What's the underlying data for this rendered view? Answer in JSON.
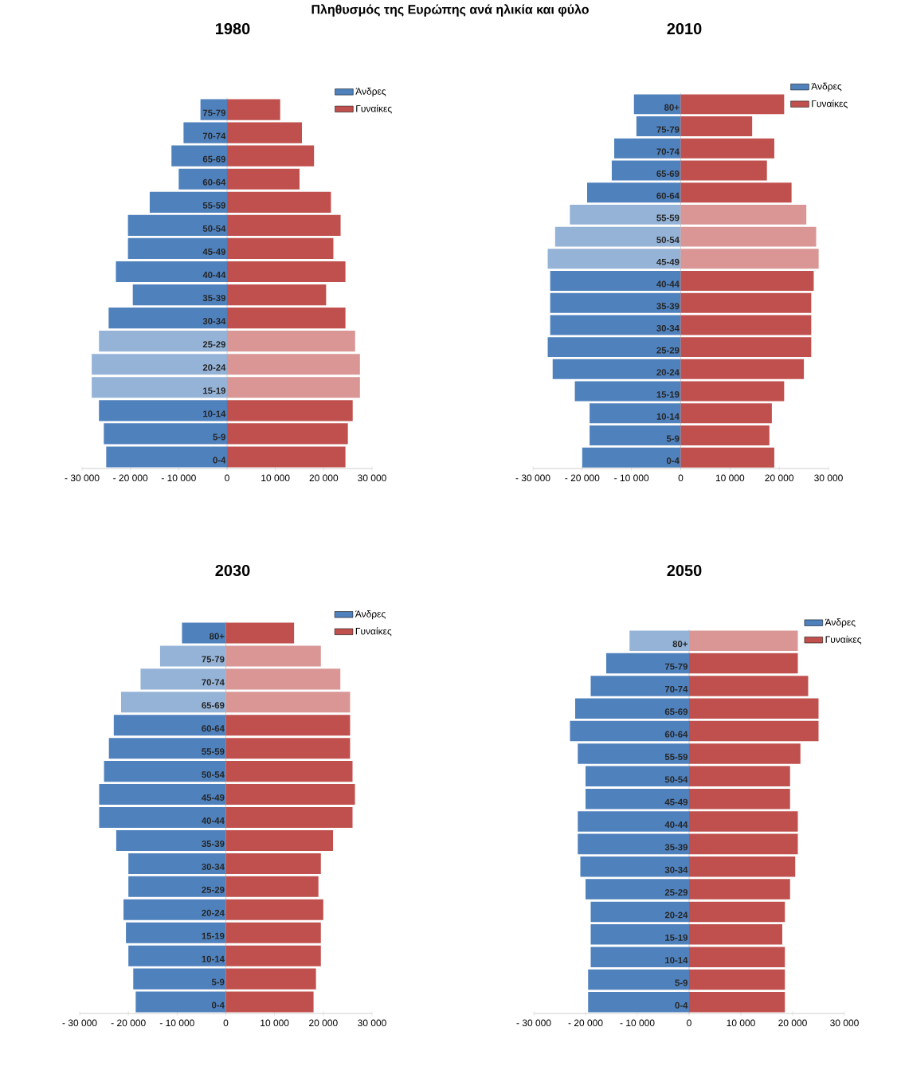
{
  "chart_data": [
    {
      "type": "other",
      "title": "Πληθυσμός της Ευρώπης ανά ηλικία και φύλο"
    },
    {
      "type": "bar",
      "title": "1980",
      "orientation": "horizontal",
      "stacked": true,
      "legend": "top right",
      "categories": [
        "75-79",
        "70-74",
        "65-69",
        "60-64",
        "55-59",
        "50-54",
        "45-49",
        "40-44",
        "35-39",
        "30-34",
        "25-29",
        "20-24",
        "15-19",
        "10-14",
        "5-9",
        "0-4"
      ],
      "series": [
        {
          "name": "Άνδρες",
          "color": "#4f81bd",
          "colors": [
            "#4f81bd",
            "#4f81bd",
            "#4f81bd",
            "#4f81bd",
            "#4f81bd",
            "#4f81bd",
            "#4f81bd",
            "#4f81bd",
            "#4f81bd",
            "#4f81bd",
            "#95b3d7",
            "#95b3d7",
            "#95b3d7",
            "#4f81bd",
            "#4f81bd",
            "#4f81bd"
          ],
          "values": [
            -5500,
            -9000,
            -11500,
            -10000,
            -16000,
            -20500,
            -20500,
            -23000,
            -19500,
            -24500,
            -26500,
            -28000,
            -28000,
            -26500,
            -25500,
            -25000
          ]
        },
        {
          "name": "Γυναίκες",
          "color": "#c0504d",
          "colors": [
            "#c0504d",
            "#c0504d",
            "#c0504d",
            "#c0504d",
            "#c0504d",
            "#c0504d",
            "#c0504d",
            "#c0504d",
            "#c0504d",
            "#c0504d",
            "#d99694",
            "#d99694",
            "#d99694",
            "#c0504d",
            "#c0504d",
            "#c0504d"
          ],
          "values": [
            11000,
            15500,
            18000,
            15000,
            21500,
            23500,
            22000,
            24500,
            20500,
            24500,
            26500,
            27500,
            27500,
            26000,
            25000,
            24500
          ]
        }
      ],
      "xlim": [
        -30000,
        30000
      ],
      "xticks": [
        {
          "value": -30000,
          "label": "- 30 000"
        },
        {
          "value": -20000,
          "label": "- 20 000"
        },
        {
          "value": -10000,
          "label": "- 10 000"
        },
        0,
        {
          "value": 10000,
          "label": "10 000"
        },
        {
          "value": 20000,
          "label": "20 000"
        },
        {
          "value": 30000,
          "label": "30 000"
        }
      ]
    },
    {
      "type": "bar",
      "title": "2010",
      "orientation": "horizontal",
      "stacked": true,
      "legend": "top right",
      "categories": [
        "80+",
        "75-79",
        "70-74",
        "65-69",
        "60-64",
        "55-59",
        "50-54",
        "45-49",
        "40-44",
        "35-39",
        "30-34",
        "25-29",
        "20-24",
        "15-19",
        "10-14",
        "5-9",
        "0-4"
      ],
      "series": [
        {
          "name": "Άνδρες",
          "color": "#4f81bd",
          "colors": [
            "#4f81bd",
            "#4f81bd",
            "#4f81bd",
            "#4f81bd",
            "#4f81bd",
            "#95b3d7",
            "#95b3d7",
            "#95b3d7",
            "#4f81bd",
            "#4f81bd",
            "#4f81bd",
            "#4f81bd",
            "#4f81bd",
            "#4f81bd",
            "#4f81bd",
            "#4f81bd",
            "#4f81bd"
          ],
          "values": [
            -9500,
            -9000,
            -13500,
            -14000,
            -19000,
            -22500,
            -25500,
            -27000,
            -26500,
            -26500,
            -26500,
            -27000,
            -26000,
            -21500,
            -18500,
            -18500,
            -20000
          ]
        },
        {
          "name": "Γυναίκες",
          "color": "#c0504d",
          "colors": [
            "#c0504d",
            "#c0504d",
            "#c0504d",
            "#c0504d",
            "#c0504d",
            "#d99694",
            "#d99694",
            "#d99694",
            "#c0504d",
            "#c0504d",
            "#c0504d",
            "#c0504d",
            "#c0504d",
            "#c0504d",
            "#c0504d",
            "#c0504d",
            "#c0504d"
          ],
          "values": [
            21000,
            14500,
            19000,
            17500,
            22500,
            25500,
            27500,
            28000,
            27000,
            26500,
            26500,
            26500,
            25000,
            21000,
            18500,
            18000,
            19000
          ]
        }
      ],
      "xlim": [
        -30000,
        30000
      ],
      "xticks": [
        {
          "value": -30000,
          "label": "- 30 000"
        },
        {
          "value": -20000,
          "label": "- 20 000"
        },
        {
          "value": -10000,
          "label": "- 10 000"
        },
        0,
        {
          "value": 10000,
          "label": "10 000"
        },
        {
          "value": 20000,
          "label": "20 000"
        },
        {
          "value": 30000,
          "label": "30 000"
        }
      ]
    },
    {
      "type": "bar",
      "title": "2030",
      "orientation": "horizontal",
      "stacked": true,
      "legend": "top right",
      "categories": [
        "80+",
        "75-79",
        "70-74",
        "65-69",
        "60-64",
        "55-59",
        "50-54",
        "45-49",
        "40-44",
        "35-39",
        "30-34",
        "25-29",
        "20-24",
        "15-19",
        "10-14",
        "5-9",
        "0-4"
      ],
      "series": [
        {
          "name": "Άνδρες",
          "color": "#4f81bd",
          "colors": [
            "#4f81bd",
            "#95b3d7",
            "#95b3d7",
            "#95b3d7",
            "#4f81bd",
            "#4f81bd",
            "#4f81bd",
            "#4f81bd",
            "#4f81bd",
            "#4f81bd",
            "#4f81bd",
            "#4f81bd",
            "#4f81bd",
            "#4f81bd",
            "#4f81bd",
            "#4f81bd",
            "#4f81bd"
          ],
          "values": [
            -9000,
            -13500,
            -17500,
            -21500,
            -23000,
            -24000,
            -25000,
            -26000,
            -26000,
            -22500,
            -20000,
            -20000,
            -21000,
            -20500,
            -20000,
            -19000,
            -18500
          ]
        },
        {
          "name": "Γυναίκες",
          "color": "#c0504d",
          "colors": [
            "#c0504d",
            "#d99694",
            "#d99694",
            "#d99694",
            "#c0504d",
            "#c0504d",
            "#c0504d",
            "#c0504d",
            "#c0504d",
            "#c0504d",
            "#c0504d",
            "#c0504d",
            "#c0504d",
            "#c0504d",
            "#c0504d",
            "#c0504d",
            "#c0504d"
          ],
          "values": [
            14000,
            19500,
            23500,
            25500,
            25500,
            25500,
            26000,
            26500,
            26000,
            22000,
            19500,
            19000,
            20000,
            19500,
            19500,
            18500,
            18000
          ]
        }
      ],
      "xlim": [
        -30000,
        30000
      ],
      "xticks": [
        {
          "value": -30000,
          "label": "- 30 000"
        },
        {
          "value": -20000,
          "label": "- 20 000"
        },
        {
          "value": -10000,
          "label": "- 10 000"
        },
        0,
        {
          "value": 10000,
          "label": "10 000"
        },
        {
          "value": 20000,
          "label": "20 000"
        },
        {
          "value": 30000,
          "label": "30 000"
        }
      ]
    },
    {
      "type": "bar",
      "title": "2050",
      "orientation": "horizontal",
      "stacked": true,
      "legend": "top right",
      "categories": [
        "80+",
        "75-79",
        "70-74",
        "65-69",
        "60-64",
        "55-59",
        "50-54",
        "45-49",
        "40-44",
        "35-39",
        "30-34",
        "25-29",
        "20-24",
        "15-19",
        "10-14",
        "5-9",
        "0-4"
      ],
      "series": [
        {
          "name": "Άνδρες",
          "color": "#4f81bd",
          "colors": [
            "#95b3d7",
            "#4f81bd",
            "#4f81bd",
            "#4f81bd",
            "#4f81bd",
            "#4f81bd",
            "#4f81bd",
            "#4f81bd",
            "#4f81bd",
            "#4f81bd",
            "#4f81bd",
            "#4f81bd",
            "#4f81bd",
            "#4f81bd",
            "#4f81bd",
            "#4f81bd",
            "#4f81bd"
          ],
          "values": [
            -11500,
            -16000,
            -19000,
            -22000,
            -23000,
            -21500,
            -20000,
            -20000,
            -21500,
            -21500,
            -21000,
            -20000,
            -19000,
            -19000,
            -19000,
            -19500,
            -19500
          ]
        },
        {
          "name": "Γυναίκες",
          "color": "#c0504d",
          "colors": [
            "#d99694",
            "#c0504d",
            "#c0504d",
            "#c0504d",
            "#c0504d",
            "#c0504d",
            "#c0504d",
            "#c0504d",
            "#c0504d",
            "#c0504d",
            "#c0504d",
            "#c0504d",
            "#c0504d",
            "#c0504d",
            "#c0504d",
            "#c0504d",
            "#c0504d"
          ],
          "values": [
            21000,
            21000,
            23000,
            25000,
            25000,
            21500,
            19500,
            19500,
            21000,
            21000,
            20500,
            19500,
            18500,
            18000,
            18500,
            18500,
            18500
          ]
        }
      ],
      "xlim": [
        -30000,
        30000
      ],
      "xticks": [
        {
          "value": -30000,
          "label": "- 30 000"
        },
        {
          "value": -20000,
          "label": "- 20 000"
        },
        {
          "value": -10000,
          "label": "- 10 000"
        },
        0,
        {
          "value": 10000,
          "label": "10 000"
        },
        {
          "value": 20000,
          "label": "20 000"
        },
        {
          "value": 30000,
          "label": "30 000"
        }
      ]
    }
  ]
}
